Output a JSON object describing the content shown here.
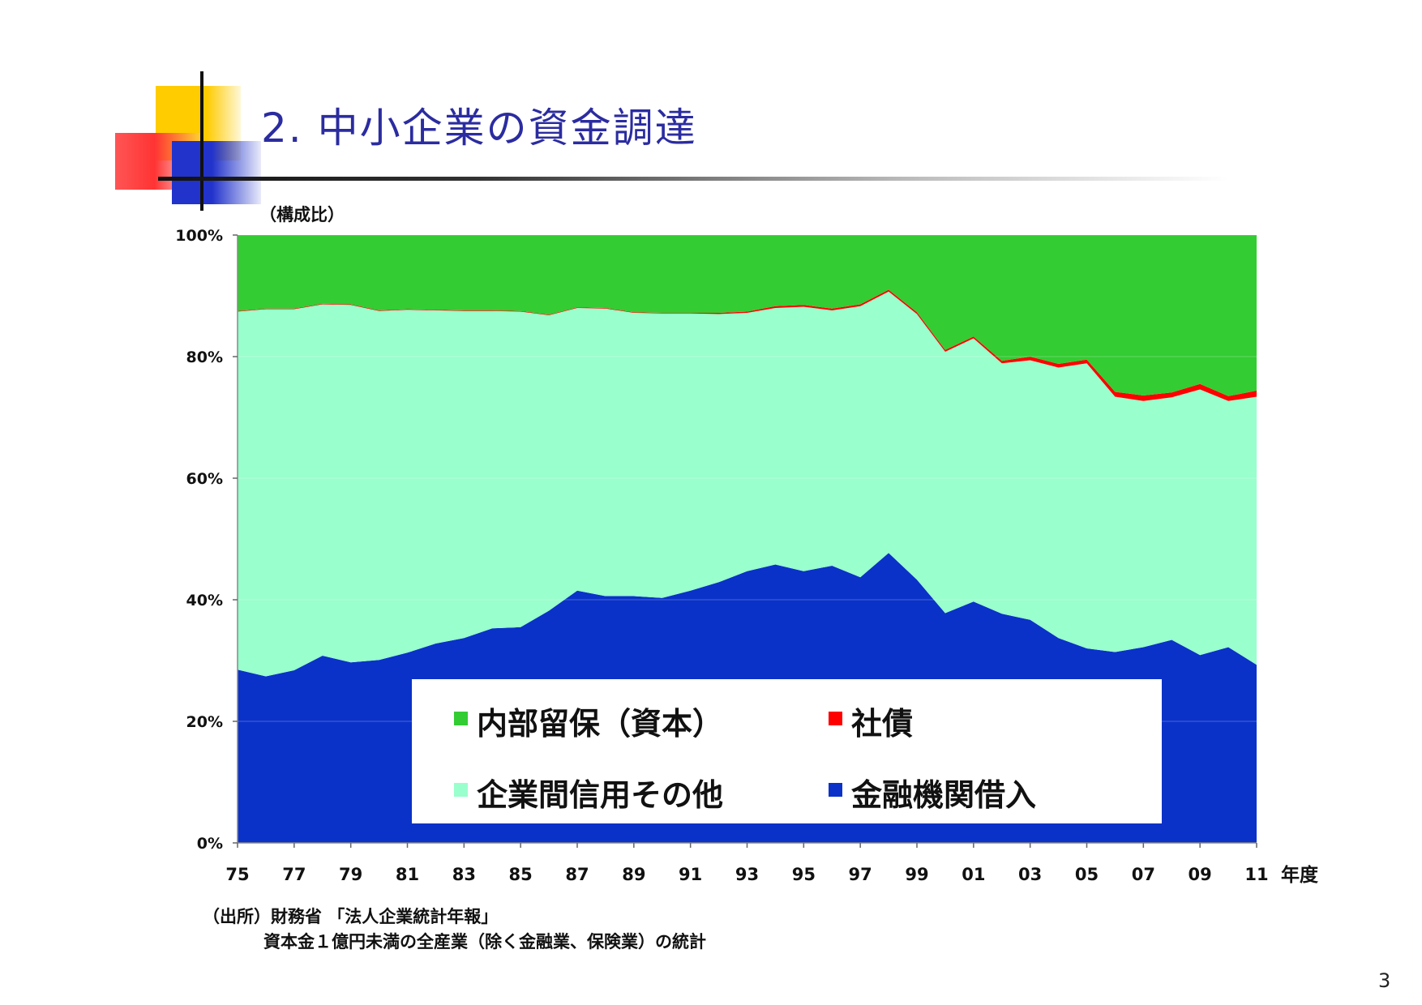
{
  "slide": {
    "title": "2. 中小企業の資金調達",
    "source_line1": "（出所）財務省 「法人企業統計年報」",
    "source_line2": "資本金１億円未満の全産業（除く金融業、保険業）の統計",
    "page_number": "3"
  },
  "chart_data": {
    "type": "area",
    "stacked": true,
    "ylabel": "（構成比）",
    "xlabel": "年度",
    "ylim": [
      0,
      100
    ],
    "y_ticks": [
      "0%",
      "20%",
      "40%",
      "60%",
      "80%",
      "100%"
    ],
    "x": [
      "75",
      "76",
      "77",
      "78",
      "79",
      "80",
      "81",
      "82",
      "83",
      "84",
      "85",
      "86",
      "87",
      "88",
      "89",
      "90",
      "91",
      "92",
      "93",
      "94",
      "95",
      "96",
      "97",
      "98",
      "99",
      "00",
      "01",
      "02",
      "03",
      "04",
      "05",
      "06",
      "07",
      "08",
      "09",
      "10",
      "11"
    ],
    "x_ticks": [
      "75",
      "77",
      "79",
      "81",
      "83",
      "85",
      "87",
      "89",
      "91",
      "93",
      "95",
      "97",
      "99",
      "01",
      "03",
      "05",
      "07",
      "09",
      "11"
    ],
    "legend_position": "bottom-center",
    "series": [
      {
        "name": "金融機関借入",
        "color": "#0a32c8",
        "values": [
          28.5,
          27.4,
          28.4,
          30.8,
          29.7,
          30.1,
          31.3,
          32.8,
          33.7,
          35.3,
          35.5,
          38.2,
          41.5,
          40.6,
          40.6,
          40.3,
          41.5,
          42.9,
          44.7,
          45.8,
          44.7,
          45.6,
          43.7,
          47.7,
          43.3,
          37.8,
          39.7,
          37.7,
          36.7,
          33.7,
          32.0,
          31.4,
          32.2,
          33.4,
          30.9,
          32.2,
          29.3
        ]
      },
      {
        "name": "企業間信用その他",
        "color": "#99ffcc",
        "values": [
          58.9,
          60.4,
          59.4,
          57.8,
          58.8,
          57.4,
          56.4,
          54.8,
          53.8,
          52.2,
          51.9,
          48.6,
          46.5,
          47.3,
          46.6,
          46.8,
          45.6,
          44.1,
          42.5,
          42.2,
          43.5,
          42.0,
          44.6,
          43.0,
          43.7,
          43.0,
          43.3,
          41.2,
          42.7,
          44.5,
          46.9,
          42.0,
          40.5,
          39.9,
          43.7,
          40.5,
          44.1
        ]
      },
      {
        "name": "社債",
        "color": "#ff0000",
        "values": [
          0.1,
          0.1,
          0.1,
          0.1,
          0.1,
          0.1,
          0.1,
          0.1,
          0.1,
          0.1,
          0.1,
          0.1,
          0.1,
          0.1,
          0.1,
          0.1,
          0.1,
          0.2,
          0.2,
          0.3,
          0.3,
          0.3,
          0.3,
          0.3,
          0.3,
          0.3,
          0.3,
          0.4,
          0.6,
          0.6,
          0.6,
          0.8,
          0.9,
          0.8,
          0.9,
          0.8,
          1.0
        ]
      },
      {
        "name": "内部留保（資本）",
        "color": "#33cc33",
        "values": [
          12.5,
          12.1,
          12.1,
          11.3,
          11.4,
          12.4,
          12.2,
          12.3,
          12.4,
          12.4,
          12.5,
          13.1,
          11.9,
          12.0,
          12.7,
          12.8,
          12.8,
          12.8,
          12.6,
          11.7,
          11.5,
          12.1,
          11.4,
          9.0,
          12.7,
          18.9,
          16.7,
          20.7,
          20.0,
          21.2,
          20.5,
          25.8,
          26.4,
          25.9,
          24.5,
          26.5,
          25.6
        ]
      }
    ],
    "legend_entries": [
      "内部留保（資本）",
      "社債",
      "企業間信用その他",
      "金融機関借入"
    ]
  },
  "colors": {
    "title": "#2b2ca0",
    "deco_yellow": "#ffcc00",
    "deco_red": "#ff3333",
    "deco_blue": "#2233cc"
  }
}
